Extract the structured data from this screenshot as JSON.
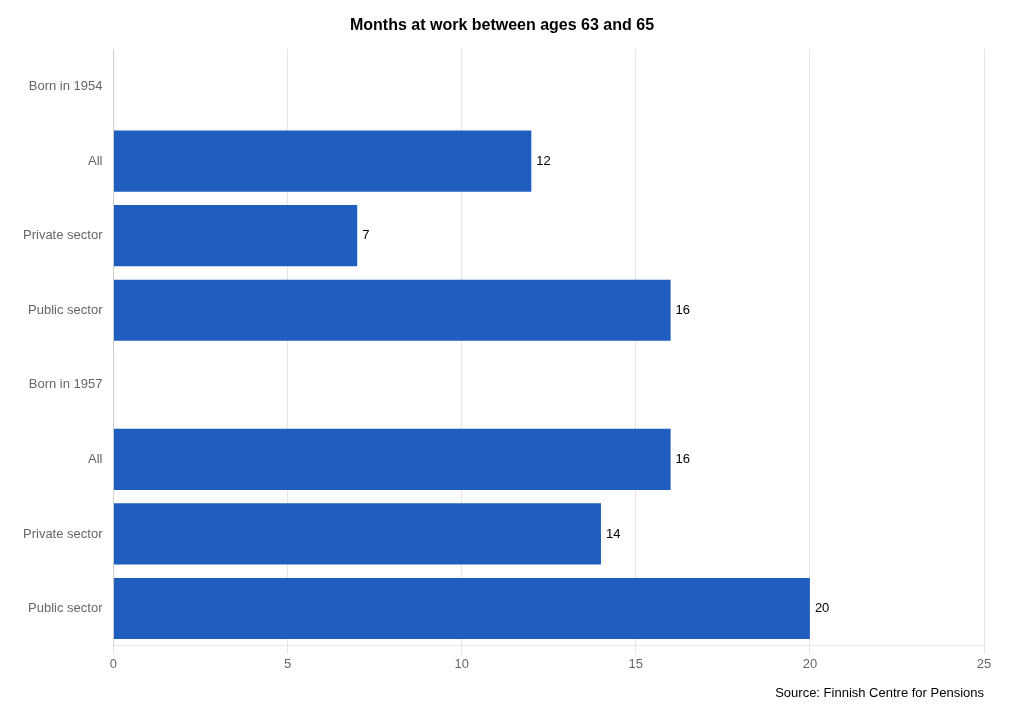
{
  "chart_data": {
    "type": "bar",
    "orientation": "horizontal",
    "title": "Months at work between ages 63 and 65",
    "annotation": "Source: Finnish Centre for Pensions",
    "categories": [
      "Born in 1954",
      "All",
      "Private sector",
      "Public sector",
      "Born in 1957",
      "All",
      "Private sector",
      "Public sector"
    ],
    "values": [
      null,
      12,
      7,
      16,
      null,
      16,
      14,
      20
    ],
    "color": "#1F5EBF",
    "xlim": [
      0,
      25
    ],
    "xticks": [
      0,
      5,
      10,
      15,
      20,
      25
    ],
    "grid": true,
    "data_labels": true
  }
}
